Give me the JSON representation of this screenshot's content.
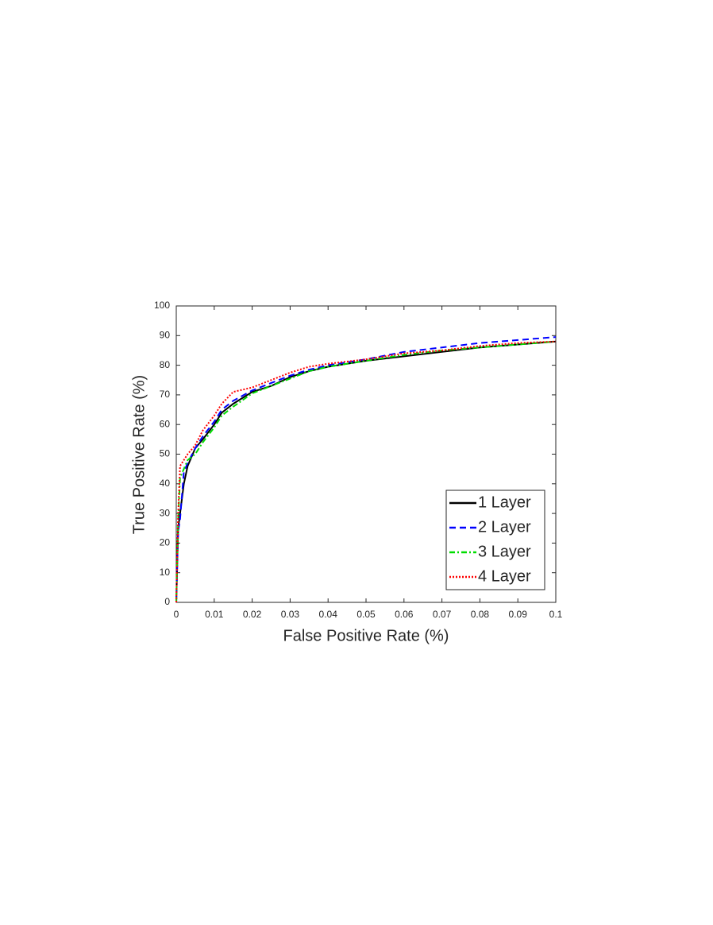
{
  "chart_data": {
    "type": "line",
    "x_label": "False Positive Rate (%)",
    "y_label": "True Positive Rate (%)",
    "x": [
      0,
      0.0005,
      0.001,
      0.002,
      0.003,
      0.005,
      0.007,
      0.01,
      0.012,
      0.015,
      0.02,
      0.025,
      0.03,
      0.035,
      0.04,
      0.05,
      0.06,
      0.07,
      0.08,
      0.09,
      0.1
    ],
    "series": [
      {
        "name": "1 Layer",
        "color": "#000000",
        "style": "solid",
        "values": [
          0,
          25,
          30,
          40,
          46,
          52,
          55,
          60,
          64,
          67,
          71,
          73,
          76,
          78,
          79.5,
          81.5,
          83,
          84.5,
          86,
          87,
          88
        ]
      },
      {
        "name": "2 Layer",
        "color": "#0000ff",
        "style": "dashed",
        "values": [
          0,
          24,
          28,
          44,
          47,
          52,
          56,
          61,
          65,
          68,
          71.5,
          74,
          76.5,
          78.5,
          80,
          82,
          84.5,
          86,
          87.5,
          88.5,
          89.5
        ]
      },
      {
        "name": "3 Layer",
        "color": "#00dd00",
        "style": "dashdot",
        "values": [
          0,
          28,
          42,
          45,
          48,
          50,
          54,
          59,
          63,
          66,
          70.5,
          73,
          75.5,
          78,
          79.5,
          81.5,
          83.5,
          85,
          86,
          87,
          88
        ]
      },
      {
        "name": "4 Layer",
        "color": "#ff0000",
        "style": "dotted",
        "values": [
          0,
          30,
          46,
          48,
          50,
          53,
          58,
          63,
          67,
          71,
          72.5,
          75,
          77.5,
          79.5,
          80.5,
          82,
          84,
          85,
          86.5,
          87.5,
          88
        ]
      }
    ],
    "xlim": [
      0,
      0.1
    ],
    "xticks": [
      0,
      0.01,
      0.02,
      0.03,
      0.04,
      0.05,
      0.06,
      0.07,
      0.08,
      0.09,
      0.1
    ],
    "ylim": [
      0,
      100
    ],
    "yticks": [
      0,
      10,
      20,
      30,
      40,
      50,
      60,
      70,
      80,
      90,
      100
    ],
    "legend": "lower-right",
    "grid": false
  }
}
